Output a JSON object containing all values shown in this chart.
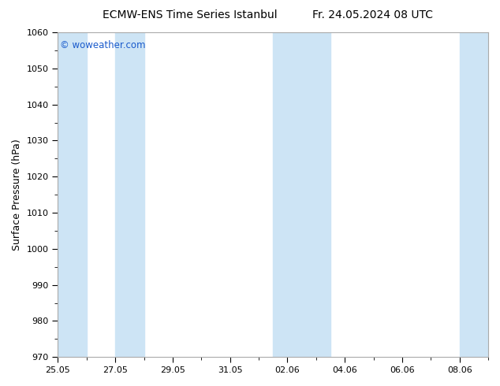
{
  "title_left": "ECMW-ENS Time Series Istanbul",
  "title_right": "Fr. 24.05.2024 08 UTC",
  "ylabel": "Surface Pressure (hPa)",
  "ylim": [
    970,
    1060
  ],
  "ytick_step": 10,
  "total_days": 15,
  "xtick_dates": [
    "25.05",
    "27.05",
    "29.05",
    "31.05",
    "02.06",
    "04.06",
    "06.06",
    "08.06"
  ],
  "xtick_positions_days": [
    0,
    2,
    4,
    6,
    8,
    10,
    12,
    14
  ],
  "shaded_bands": [
    {
      "start_day": 0.0,
      "end_day": 1.0
    },
    {
      "start_day": 2.0,
      "end_day": 3.0
    },
    {
      "start_day": 7.5,
      "end_day": 9.5
    },
    {
      "start_day": 14.0,
      "end_day": 15.0
    }
  ],
  "band_color": "#cde4f5",
  "background_color": "#ffffff",
  "plot_bg_color": "#ffffff",
  "watermark": "© woweather.com",
  "watermark_color": "#1a5bcc",
  "title_fontsize": 10,
  "ylabel_fontsize": 9,
  "tick_fontsize": 8
}
